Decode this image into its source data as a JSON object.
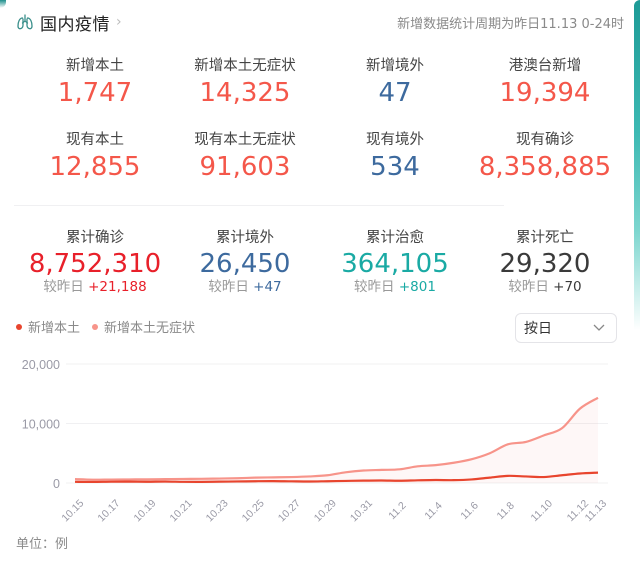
{
  "header": {
    "title": "国内疫情",
    "chevron": "›",
    "note": "新增数据统计周期为昨日11.13 0-24时",
    "icon": "lungs-icon"
  },
  "stats_row1": [
    {
      "label": "新增本土",
      "value": "1,747",
      "color": "#f4574a"
    },
    {
      "label": "新增本土无症状",
      "value": "14,325",
      "color": "#f4574a"
    },
    {
      "label": "新增境外",
      "value": "47",
      "color": "#3d6a9e"
    },
    {
      "label": "港澳台新增",
      "value": "19,394",
      "color": "#f4574a"
    }
  ],
  "stats_row2": [
    {
      "label": "现有本土",
      "value": "12,855",
      "color": "#f4574a"
    },
    {
      "label": "现有本土无症状",
      "value": "91,603",
      "color": "#f4574a"
    },
    {
      "label": "现有境外",
      "value": "534",
      "color": "#3d6a9e"
    },
    {
      "label": "现有确诊",
      "value": "8,358,885",
      "color": "#f4574a"
    }
  ],
  "stats_row3": [
    {
      "label": "累计确诊",
      "value": "8,752,310",
      "delta_label": "较昨日",
      "delta": "+21,188",
      "color": "#e8202a"
    },
    {
      "label": "累计境外",
      "value": "26,450",
      "delta_label": "较昨日",
      "delta": "+47",
      "color": "#3d6a9e"
    },
    {
      "label": "累计治愈",
      "value": "364,105",
      "delta_label": "较昨日",
      "delta": "+801",
      "color": "#1aaaa4"
    },
    {
      "label": "累计死亡",
      "value": "29,320",
      "delta_label": "较昨日",
      "delta": "+70",
      "color": "#3a3a3a"
    }
  ],
  "legend": [
    {
      "label": "新增本土",
      "color": "#e8452e"
    },
    {
      "label": "新增本土无症状",
      "color": "#f7948a"
    }
  ],
  "period_select": {
    "value": "按日",
    "icon": "chevron-down-icon"
  },
  "unit_label": "单位：例",
  "chart_data": {
    "type": "line",
    "title": "",
    "xlabel": "",
    "ylabel": "",
    "ylim": [
      0,
      20000
    ],
    "yticks": [
      "0",
      "10,000",
      "20,000"
    ],
    "grid": true,
    "legend_position": "top-left",
    "x": [
      "10.15",
      "10.16",
      "10.17",
      "10.18",
      "10.19",
      "10.20",
      "10.21",
      "10.22",
      "10.23",
      "10.24",
      "10.25",
      "10.26",
      "10.27",
      "10.28",
      "10.29",
      "10.30",
      "10.31",
      "11.1",
      "11.2",
      "11.3",
      "11.4",
      "11.5",
      "11.6",
      "11.7",
      "11.8",
      "11.9",
      "11.10",
      "11.11",
      "11.12",
      "11.13"
    ],
    "xtick_labels": [
      "10.15",
      "10.17",
      "10.19",
      "10.21",
      "10.23",
      "10.25",
      "10.27",
      "10.29",
      "10.31",
      "11.2",
      "11.4",
      "11.6",
      "11.8",
      "11.10",
      "11.12",
      "11.13"
    ],
    "series": [
      {
        "name": "新增本土",
        "color": "#e8452e",
        "values": [
          200,
          180,
          220,
          230,
          210,
          240,
          200,
          190,
          230,
          260,
          300,
          320,
          280,
          250,
          300,
          350,
          400,
          420,
          380,
          450,
          500,
          480,
          600,
          900,
          1200,
          1100,
          1000,
          1300,
          1600,
          1747
        ]
      },
      {
        "name": "新增本土无症状",
        "color": "#f7948a",
        "values": [
          650,
          550,
          580,
          600,
          620,
          650,
          680,
          700,
          750,
          800,
          900,
          950,
          1000,
          1100,
          1300,
          1800,
          2100,
          2200,
          2300,
          2800,
          3000,
          3400,
          4000,
          5000,
          6500,
          6900,
          8000,
          9200,
          12500,
          14325
        ]
      }
    ]
  }
}
